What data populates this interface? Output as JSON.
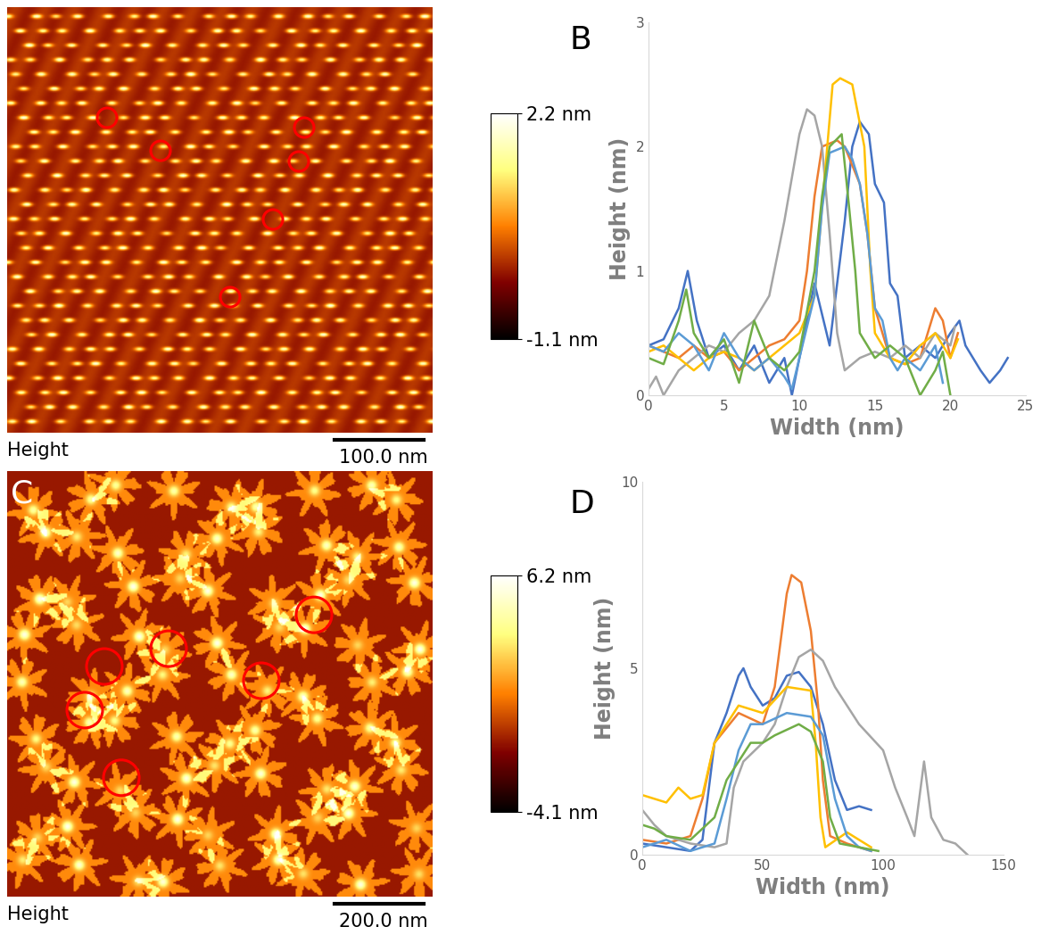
{
  "chart_data": [
    {
      "type": "image",
      "label": "Height",
      "scale_bar": "100.0 nm",
      "colorbar": {
        "range": [
          -1.1,
          2.2
        ],
        "ticks": [
          {
            "value": 2.2,
            "label": "2.2 nm"
          },
          {
            "value": -1.1,
            "label": "-1.1 nm"
          }
        ]
      }
    },
    {
      "type": "line",
      "panel_label": "B",
      "x_label": "Width (nm)",
      "y_label": "Height (nm)",
      "xlim": [
        0,
        25
      ],
      "xticks": [
        0,
        5,
        10,
        15,
        20,
        25
      ],
      "ylim": [
        0,
        3
      ],
      "yticks": [
        0,
        1,
        2,
        3
      ],
      "series": [
        {
          "color": "#4472c4",
          "x": [
            0,
            1,
            2,
            2.6,
            3.2,
            4,
            5,
            6,
            7,
            8,
            9,
            9.5,
            10,
            11,
            12,
            13,
            13.5,
            14,
            14.6,
            15,
            15.6,
            16,
            16.5,
            17,
            18,
            19,
            20,
            20.6,
            21,
            22,
            22.6,
            23.3,
            23.8
          ],
          "values": [
            0.4,
            0.45,
            0.7,
            1.0,
            0.6,
            0.3,
            0.4,
            0.2,
            0.4,
            0.1,
            0.3,
            0.0,
            0.3,
            0.9,
            0.4,
            1.4,
            2.0,
            2.2,
            2.1,
            1.7,
            1.55,
            0.9,
            0.8,
            0.3,
            0.4,
            0.3,
            0.5,
            0.6,
            0.4,
            0.2,
            0.1,
            0.2,
            0.3
          ]
        },
        {
          "color": "#ed7d31",
          "x": [
            0,
            1,
            2,
            3,
            4,
            5,
            6,
            7,
            8,
            9,
            10,
            10.5,
            11,
            11.5,
            12.5,
            13,
            14,
            14.5,
            15,
            15.5,
            16,
            17,
            18,
            18.5,
            19,
            19.5,
            20,
            20.5
          ],
          "values": [
            0.4,
            0.35,
            0.3,
            0.4,
            0.3,
            0.35,
            0.2,
            0.3,
            0.4,
            0.45,
            0.6,
            1.0,
            1.6,
            2.0,
            2.05,
            2.0,
            1.7,
            1.3,
            0.7,
            0.5,
            0.3,
            0.25,
            0.3,
            0.5,
            0.7,
            0.6,
            0.3,
            0.5
          ]
        },
        {
          "color": "#a5a5a5",
          "x": [
            0,
            0.5,
            1,
            2,
            3,
            4,
            5,
            6,
            7,
            8,
            9,
            10,
            10.5,
            11,
            11.5,
            12,
            12.5,
            13,
            14,
            15,
            16,
            17,
            18,
            19,
            20,
            20.3
          ],
          "values": [
            0.05,
            0.15,
            0.0,
            0.2,
            0.3,
            0.4,
            0.35,
            0.5,
            0.6,
            0.8,
            1.4,
            2.1,
            2.3,
            2.25,
            2.0,
            1.3,
            0.5,
            0.2,
            0.3,
            0.35,
            0.3,
            0.4,
            0.3,
            0.5,
            0.4,
            0.55
          ]
        },
        {
          "color": "#ffc000",
          "x": [
            0,
            1,
            2,
            3,
            4,
            5,
            6,
            7,
            8,
            9,
            10,
            11,
            11.7,
            12.2,
            12.7,
            13.5,
            14.3,
            14.7,
            15,
            16,
            17,
            18,
            19,
            20,
            20.5
          ],
          "values": [
            0.35,
            0.4,
            0.3,
            0.2,
            0.3,
            0.35,
            0.3,
            0.2,
            0.3,
            0.4,
            0.5,
            0.8,
            1.8,
            2.5,
            2.55,
            2.5,
            2.0,
            1.0,
            0.5,
            0.3,
            0.25,
            0.4,
            0.5,
            0.3,
            0.45
          ]
        },
        {
          "color": "#5b9bd5",
          "x": [
            0,
            1,
            2,
            3,
            4,
            5,
            6,
            7,
            8,
            9,
            9.5,
            10,
            11,
            11.5,
            12,
            13,
            13.5,
            14,
            14.5,
            15,
            15.5,
            16,
            16.5,
            17,
            18,
            19,
            19.5
          ],
          "values": [
            0.4,
            0.35,
            0.5,
            0.4,
            0.2,
            0.5,
            0.3,
            0.2,
            0.3,
            0.15,
            0.05,
            0.3,
            0.8,
            1.5,
            1.95,
            2.0,
            1.9,
            1.7,
            1.3,
            0.7,
            0.6,
            0.3,
            0.2,
            0.3,
            0.2,
            0.4,
            0.1
          ]
        },
        {
          "color": "#70ad47",
          "x": [
            0,
            1,
            2,
            2.5,
            3,
            4,
            5,
            6,
            7,
            8,
            9,
            10,
            11,
            11.5,
            12,
            12.8,
            13.3,
            13.7,
            14,
            15,
            16,
            17,
            18,
            19,
            19.5,
            20
          ],
          "values": [
            0.3,
            0.25,
            0.6,
            0.85,
            0.5,
            0.3,
            0.45,
            0.1,
            0.6,
            0.3,
            0.2,
            0.35,
            1.0,
            1.6,
            2.0,
            2.1,
            1.5,
            1.0,
            0.5,
            0.3,
            0.4,
            0.3,
            0.0,
            0.2,
            0.35,
            0.0
          ]
        }
      ]
    },
    {
      "type": "image",
      "panel_label": "C",
      "label": "Height",
      "scale_bar": "200.0 nm",
      "colorbar": {
        "range": [
          -4.1,
          6.2
        ],
        "ticks": [
          {
            "value": 6.2,
            "label": "6.2 nm"
          },
          {
            "value": -4.1,
            "label": "-4.1 nm"
          }
        ]
      }
    },
    {
      "type": "line",
      "panel_label": "D",
      "x_label": "Width (nm)",
      "y_label": "Height (nm)",
      "xlim": [
        0,
        150
      ],
      "xticks": [
        0,
        50,
        100,
        150
      ],
      "ylim": [
        0,
        10
      ],
      "yticks": [
        0,
        5,
        10
      ],
      "series": [
        {
          "color": "#4472c4",
          "x": [
            0,
            10,
            20,
            25,
            30,
            35,
            40,
            42,
            45,
            50,
            55,
            60,
            65,
            70,
            75,
            80,
            85,
            90,
            95
          ],
          "values": [
            0.3,
            0.2,
            0.1,
            0.4,
            3.0,
            3.8,
            4.8,
            5.0,
            4.5,
            4.0,
            4.2,
            4.8,
            4.9,
            4.5,
            3.5,
            2.0,
            1.2,
            1.3,
            1.2
          ]
        },
        {
          "color": "#ed7d31",
          "x": [
            0,
            10,
            20,
            25,
            30,
            40,
            50,
            55,
            60,
            62,
            66,
            70,
            73,
            75,
            78,
            85,
            95
          ],
          "values": [
            0.4,
            0.3,
            0.5,
            1.5,
            3.0,
            3.8,
            3.5,
            4.5,
            7.0,
            7.5,
            7.3,
            6.0,
            4.0,
            2.0,
            0.5,
            0.3,
            0.1
          ]
        },
        {
          "color": "#a5a5a5",
          "x": [
            0,
            5,
            10,
            20,
            30,
            35,
            38,
            42,
            50,
            55,
            60,
            65,
            70,
            75,
            80,
            90,
            100,
            105,
            110,
            113,
            117,
            120,
            125,
            130,
            135
          ],
          "values": [
            1.2,
            0.8,
            0.5,
            0.3,
            0.2,
            0.3,
            1.8,
            2.5,
            3.0,
            3.5,
            4.5,
            5.3,
            5.5,
            5.2,
            4.5,
            3.5,
            2.8,
            1.8,
            1.0,
            0.5,
            2.5,
            1.0,
            0.4,
            0.3,
            0.0
          ]
        },
        {
          "color": "#ffc000",
          "x": [
            0,
            5,
            10,
            15,
            20,
            25,
            30,
            40,
            50,
            60,
            70,
            72,
            74,
            76,
            85,
            95
          ],
          "values": [
            1.6,
            1.5,
            1.4,
            1.8,
            1.5,
            1.6,
            3.0,
            4.0,
            3.8,
            4.5,
            4.4,
            3.0,
            1.0,
            0.2,
            0.6,
            0.2
          ]
        },
        {
          "color": "#5b9bd5",
          "x": [
            0,
            10,
            20,
            30,
            35,
            40,
            45,
            50,
            60,
            70,
            75,
            80,
            85,
            90,
            95
          ],
          "values": [
            0.2,
            0.4,
            0.1,
            0.3,
            1.5,
            2.8,
            3.5,
            3.5,
            3.8,
            3.7,
            3.2,
            1.5,
            0.5,
            0.2,
            0.1
          ]
        },
        {
          "color": "#70ad47",
          "x": [
            0,
            5,
            10,
            20,
            30,
            35,
            40,
            45,
            50,
            55,
            65,
            70,
            75,
            78,
            82,
            90,
            98
          ],
          "values": [
            0.8,
            0.7,
            0.5,
            0.4,
            1.0,
            2.0,
            2.5,
            3.0,
            3.0,
            3.2,
            3.5,
            3.3,
            2.5,
            1.0,
            0.3,
            0.2,
            0.1
          ]
        }
      ]
    }
  ]
}
